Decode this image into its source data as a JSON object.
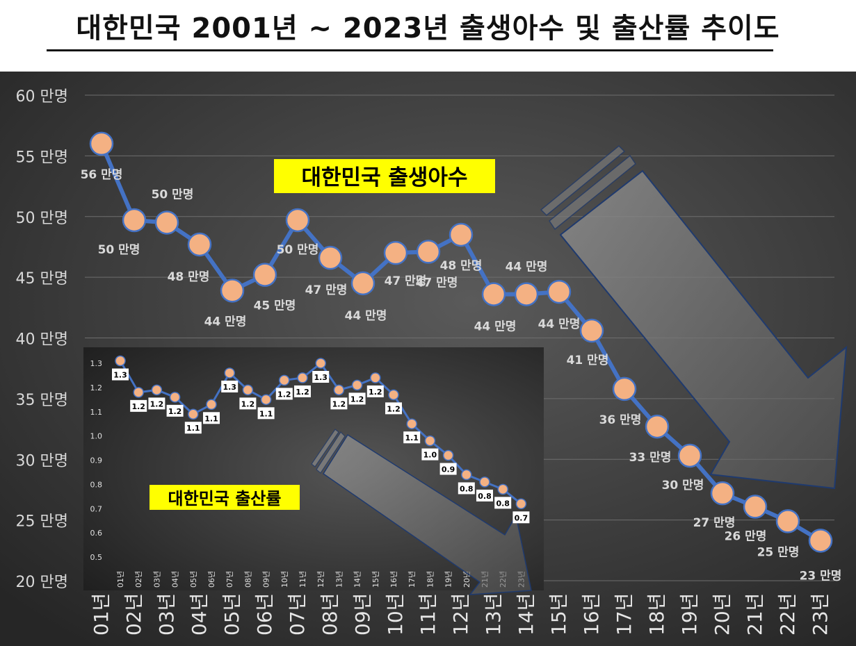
{
  "title": "대한민국 2001년 ~ 2023년 출생아수 및 출산률 추이도",
  "chart_data": [
    {
      "type": "line",
      "title": "대한민국 출생아수",
      "categories": [
        "01년",
        "02년",
        "03년",
        "04년",
        "05년",
        "06년",
        "07년",
        "08년",
        "09년",
        "10년",
        "11년",
        "12년",
        "13년",
        "14년",
        "15년",
        "16년",
        "17년",
        "18년",
        "19년",
        "20년",
        "21년",
        "22년",
        "23년"
      ],
      "values": [
        56.0,
        49.7,
        49.5,
        47.7,
        43.9,
        45.2,
        49.7,
        46.6,
        44.5,
        47.0,
        47.1,
        48.5,
        43.6,
        43.6,
        43.8,
        40.6,
        35.8,
        32.7,
        30.3,
        27.2,
        26.1,
        24.9,
        23.3
      ],
      "data_labels": [
        "56 만명",
        "50 만명",
        "50 만명",
        "48 만명",
        "44 만명",
        "45 만명",
        "50 만명",
        "47 만명",
        "44 만명",
        "47 만명",
        "47 만명",
        "48 만명",
        "44 만명",
        "44 만명",
        "44 만명",
        "41 만명",
        "36 만명",
        "33 만명",
        "30 만명",
        "27 만명",
        "26 만명",
        "25 만명",
        "23 만명"
      ],
      "y_ticks": [
        60,
        55,
        50,
        45,
        40,
        35,
        30,
        25,
        20
      ],
      "y_tick_labels": [
        "60 만명",
        "55 만명",
        "50 만명",
        "45 만명",
        "40 만명",
        "35 만명",
        "30 만명",
        "25 만명",
        "20 만명"
      ],
      "ylim": [
        20,
        60
      ],
      "grid": true,
      "colors": {
        "line": "#4472c4",
        "marker": "#f4b183",
        "title_bg": "#ffff00",
        "bg": "#3a3a3a"
      }
    },
    {
      "type": "line",
      "title": "대한민국 출산률",
      "categories": [
        "01년",
        "02년",
        "03년",
        "04년",
        "05년",
        "06년",
        "07년",
        "08년",
        "09년",
        "10년",
        "11년",
        "12년",
        "13년",
        "14년",
        "15년",
        "16년",
        "17년",
        "18년",
        "19년",
        "20년",
        "21년",
        "22년",
        "23년"
      ],
      "values": [
        1.31,
        1.18,
        1.19,
        1.16,
        1.09,
        1.13,
        1.26,
        1.19,
        1.15,
        1.23,
        1.24,
        1.3,
        1.19,
        1.21,
        1.24,
        1.17,
        1.05,
        0.98,
        0.92,
        0.84,
        0.81,
        0.78,
        0.72
      ],
      "data_labels": [
        "1.3",
        "1.2",
        "1.2",
        "1.2",
        "1.1",
        "1.1",
        "1.3",
        "1.2",
        "1.1",
        "1.2",
        "1.2",
        "1.3",
        "1.2",
        "1.2",
        "1.2",
        "1.2",
        "1.1",
        "1.0",
        "0.9",
        "0.8",
        "0.8",
        "0.8",
        "0.7"
      ],
      "y_ticks": [
        1.3,
        1.2,
        1.1,
        1.0,
        0.9,
        0.8,
        0.7,
        0.6,
        0.5
      ],
      "y_tick_labels": [
        "1.3",
        "1.2",
        "1.1",
        "1.0",
        "0.9",
        "0.8",
        "0.7",
        "0.6",
        "0.5"
      ],
      "ylim": [
        0.5,
        1.33
      ],
      "grid": false,
      "colors": {
        "line": "#4472c4",
        "marker": "#f4b183",
        "title_bg": "#ffff00",
        "bg": "#2e2e2e"
      }
    }
  ]
}
